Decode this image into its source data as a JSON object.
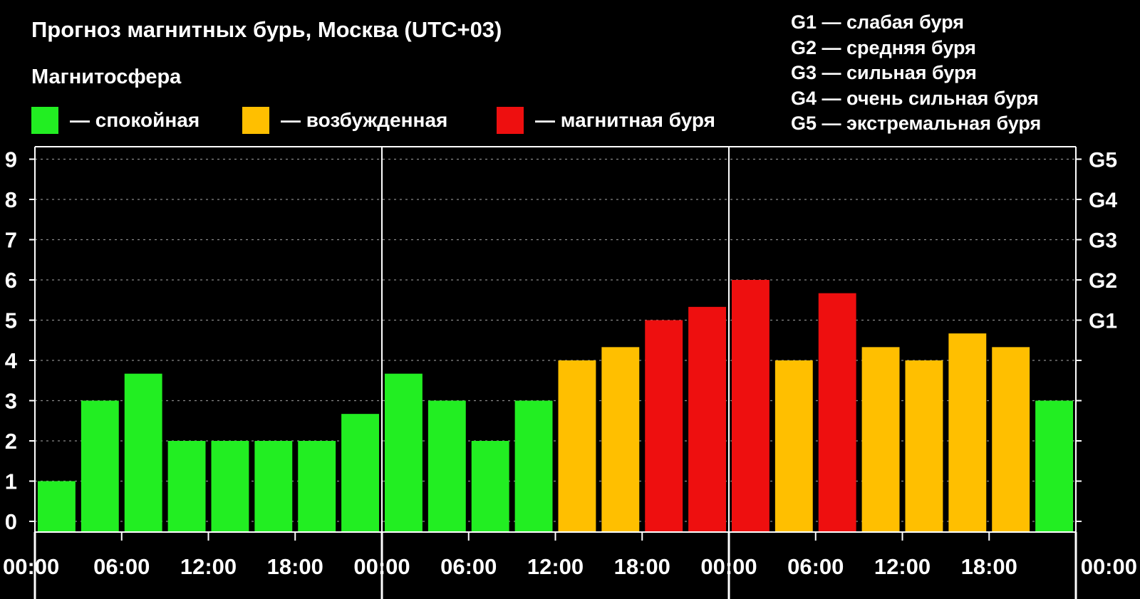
{
  "header": {
    "title": "Прогноз магнитных бурь, Москва (UTC+03)",
    "subtitle": "Магнитосфера"
  },
  "legend": [
    {
      "label": "— спокойная",
      "color": "#22ee22"
    },
    {
      "label": "— возбужденная",
      "color": "#ffbf00"
    },
    {
      "label": "— магнитная буря",
      "color": "#ee0f0f"
    }
  ],
  "g_levels": [
    "G1 — слабая буря",
    "G2 — средняя буря",
    "G3 — сильная буря",
    "G4 — очень сильная буря",
    "G5 — экстремальная буря"
  ],
  "chart_data": {
    "type": "bar",
    "title": "Прогноз магнитных бурь, Москва (UTC+03)",
    "ylim": [
      0,
      9
    ],
    "y_ticks": [
      "0",
      "1",
      "2",
      "3",
      "4",
      "5",
      "6",
      "7",
      "8",
      "9"
    ],
    "right_axis_ticks": [
      {
        "y": 5,
        "label": "G1"
      },
      {
        "y": 6,
        "label": "G2"
      },
      {
        "y": 7,
        "label": "G3"
      },
      {
        "y": 8,
        "label": "G4"
      },
      {
        "y": 9,
        "label": "G5"
      }
    ],
    "x_tick_labels": [
      "00:00",
      "06:00",
      "12:00",
      "18:00",
      "00:00",
      "06:00",
      "12:00",
      "18:00",
      "00:00",
      "06:00",
      "12:00",
      "18:00",
      "00:00"
    ],
    "grid": true,
    "day_separators_after_bar": [
      8,
      16
    ],
    "values": [
      1,
      3,
      3.67,
      2,
      2,
      2,
      2,
      2.67,
      3.67,
      3,
      2,
      3,
      4,
      4.33,
      5,
      5.33,
      6,
      4,
      5.67,
      4.33,
      4,
      4.67,
      4.33,
      3
    ],
    "levels": [
      "quiet",
      "quiet",
      "quiet",
      "quiet",
      "quiet",
      "quiet",
      "quiet",
      "quiet",
      "quiet",
      "quiet",
      "quiet",
      "quiet",
      "active",
      "active",
      "storm",
      "storm",
      "storm",
      "active",
      "storm",
      "active",
      "active",
      "active",
      "active",
      "quiet"
    ],
    "level_colors": {
      "quiet": "#22ee22",
      "active": "#ffbf00",
      "storm": "#ee0f0f"
    }
  }
}
